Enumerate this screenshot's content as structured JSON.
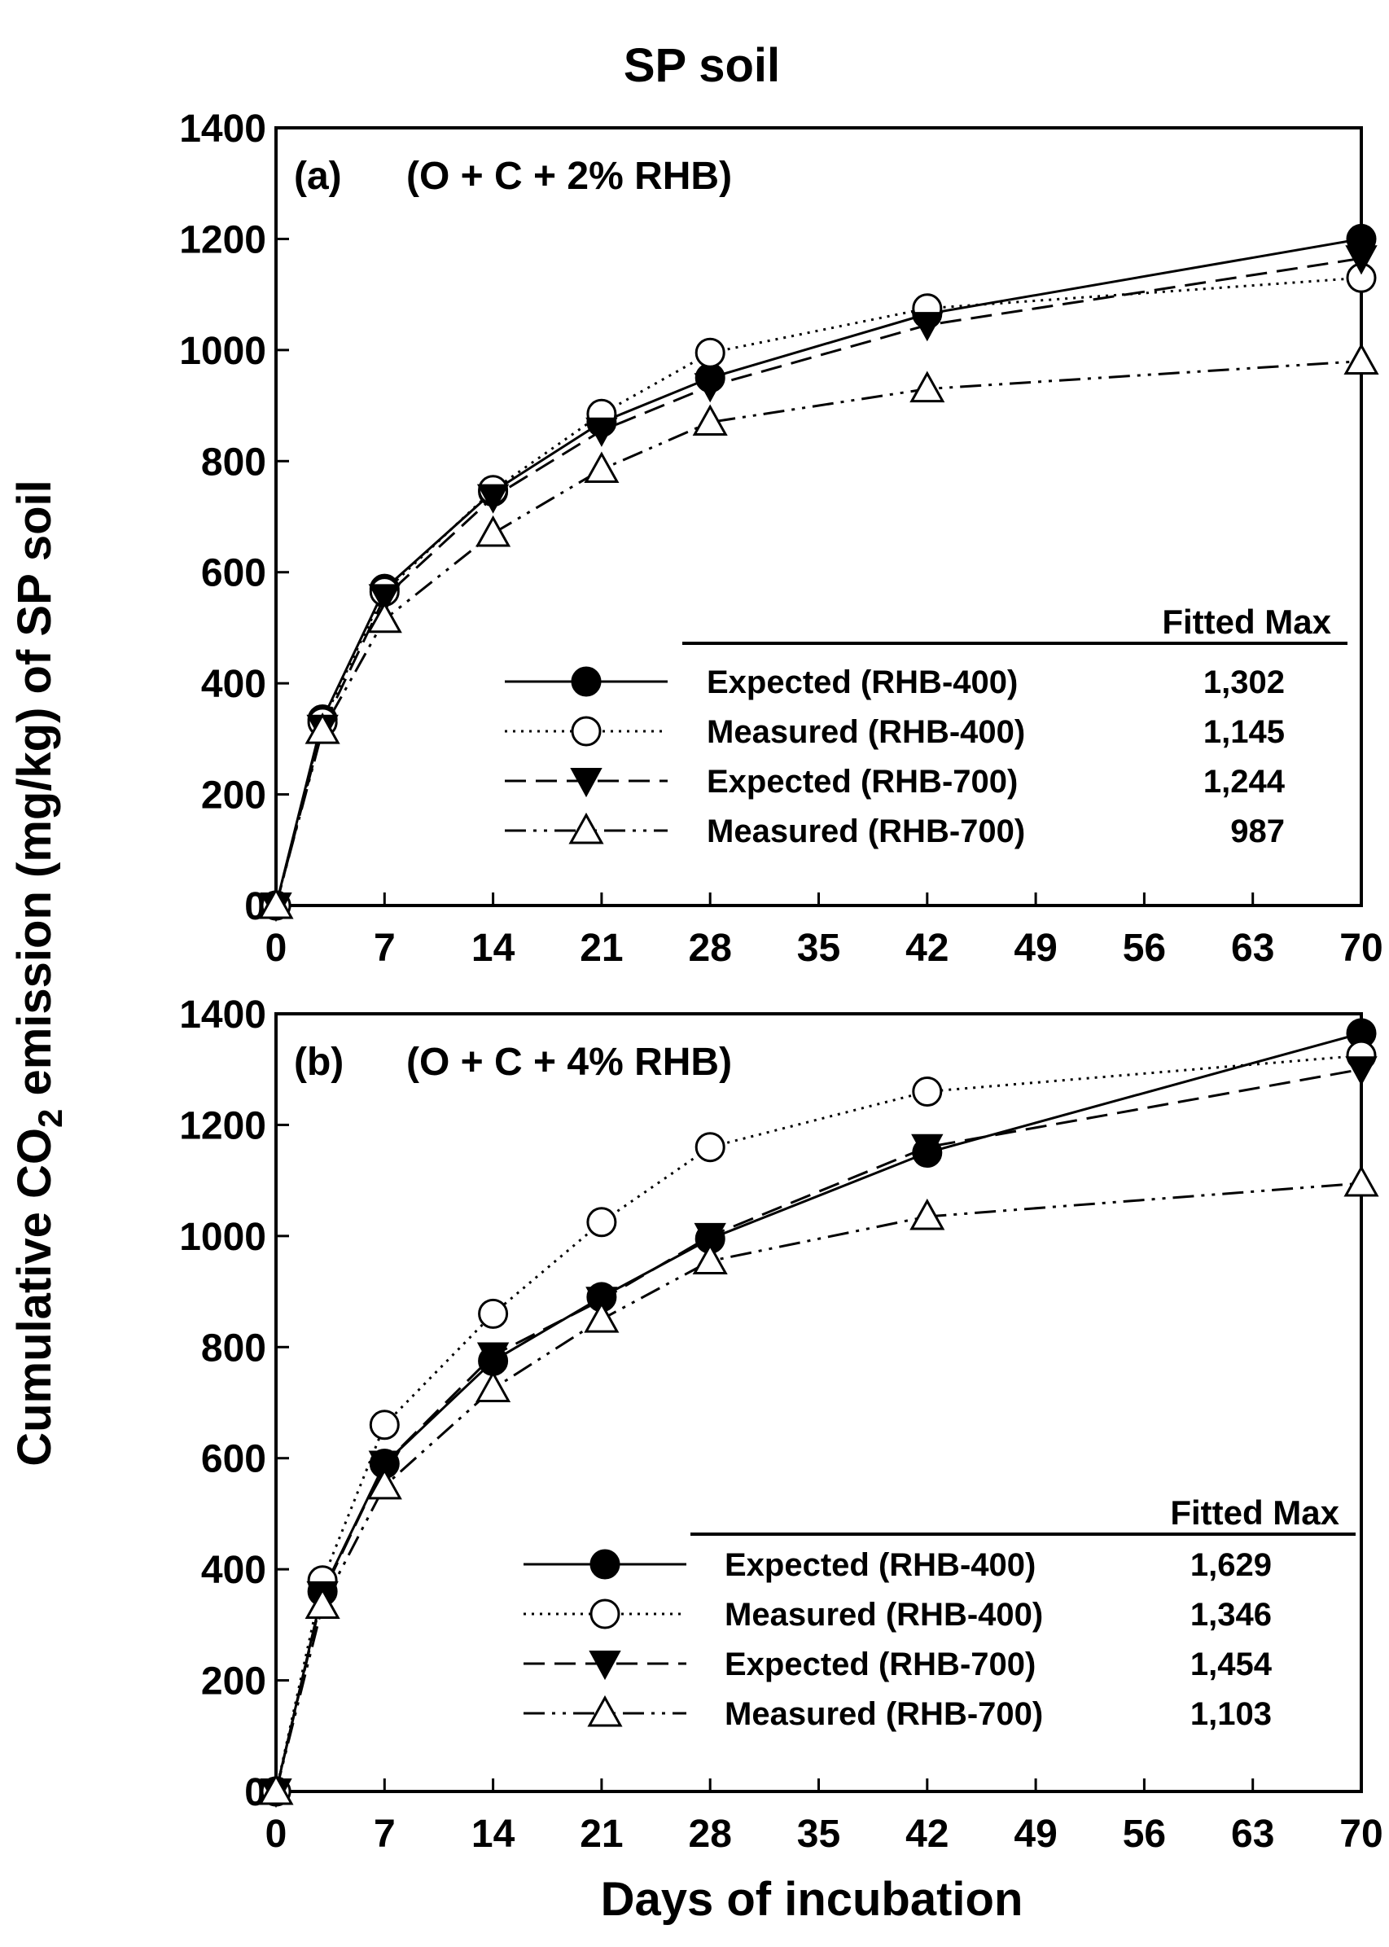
{
  "figure": {
    "title": "SP soil",
    "ylabel_prefix": "Cumulative CO",
    "ylabel_sub": "2",
    "ylabel_suffix": " emission (mg/kg) of SP soil",
    "xlabel": "Days of incubation"
  },
  "chart_data": [
    {
      "type": "line",
      "panel_label": "(a)",
      "treatment": "(O + C + 2% RHB)",
      "x": [
        0,
        3,
        7,
        14,
        21,
        28,
        42,
        70
      ],
      "xlim": [
        0,
        70
      ],
      "xticks": [
        0,
        7,
        14,
        21,
        28,
        35,
        42,
        49,
        56,
        63,
        70
      ],
      "ylim": [
        0,
        1400
      ],
      "yticks": [
        0,
        200,
        400,
        600,
        800,
        1000,
        1200,
        1400
      ],
      "legend_header": "Fitted Max",
      "series": [
        {
          "name": "Expected (RHB-400)",
          "fitted_max": "1,302",
          "marker": "filled-circle",
          "line": "solid",
          "values": [
            0,
            335,
            570,
            745,
            870,
            950,
            1065,
            1200
          ]
        },
        {
          "name": "Measured (RHB-400)",
          "fitted_max": "1,145",
          "marker": "open-circle",
          "line": "dotted",
          "values": [
            0,
            330,
            565,
            748,
            885,
            995,
            1075,
            1130
          ]
        },
        {
          "name": "Expected (RHB-700)",
          "fitted_max": "1,244",
          "marker": "filled-triangle-down",
          "line": "dashed",
          "values": [
            0,
            320,
            555,
            735,
            855,
            935,
            1045,
            1165
          ]
        },
        {
          "name": "Measured (RHB-700)",
          "fitted_max": "987",
          "marker": "open-triangle-up",
          "line": "dash-dot-dot",
          "values": [
            0,
            315,
            515,
            670,
            785,
            870,
            930,
            980
          ]
        }
      ]
    },
    {
      "type": "line",
      "panel_label": "(b)",
      "treatment": "(O + C + 4% RHB)",
      "x": [
        0,
        3,
        7,
        14,
        21,
        28,
        42,
        70
      ],
      "xlim": [
        0,
        70
      ],
      "xticks": [
        0,
        7,
        14,
        21,
        28,
        35,
        42,
        49,
        56,
        63,
        70
      ],
      "ylim": [
        0,
        1400
      ],
      "yticks": [
        0,
        200,
        400,
        600,
        800,
        1000,
        1200,
        1400
      ],
      "legend_header": "Fitted Max",
      "series": [
        {
          "name": "Expected (RHB-400)",
          "fitted_max": "1,629",
          "marker": "filled-circle",
          "line": "solid",
          "values": [
            0,
            360,
            590,
            775,
            890,
            995,
            1150,
            1365
          ]
        },
        {
          "name": "Measured (RHB-400)",
          "fitted_max": "1,346",
          "marker": "open-circle",
          "line": "dotted",
          "values": [
            0,
            380,
            660,
            860,
            1025,
            1160,
            1260,
            1325
          ]
        },
        {
          "name": "Expected (RHB-700)",
          "fitted_max": "1,454",
          "marker": "filled-triangle-down",
          "line": "dashed",
          "values": [
            0,
            355,
            590,
            785,
            885,
            1000,
            1160,
            1300
          ]
        },
        {
          "name": "Measured (RHB-700)",
          "fitted_max": "1,103",
          "marker": "open-triangle-up",
          "line": "dash-dot-dot",
          "values": [
            0,
            335,
            550,
            725,
            850,
            955,
            1035,
            1095
          ]
        }
      ]
    }
  ]
}
